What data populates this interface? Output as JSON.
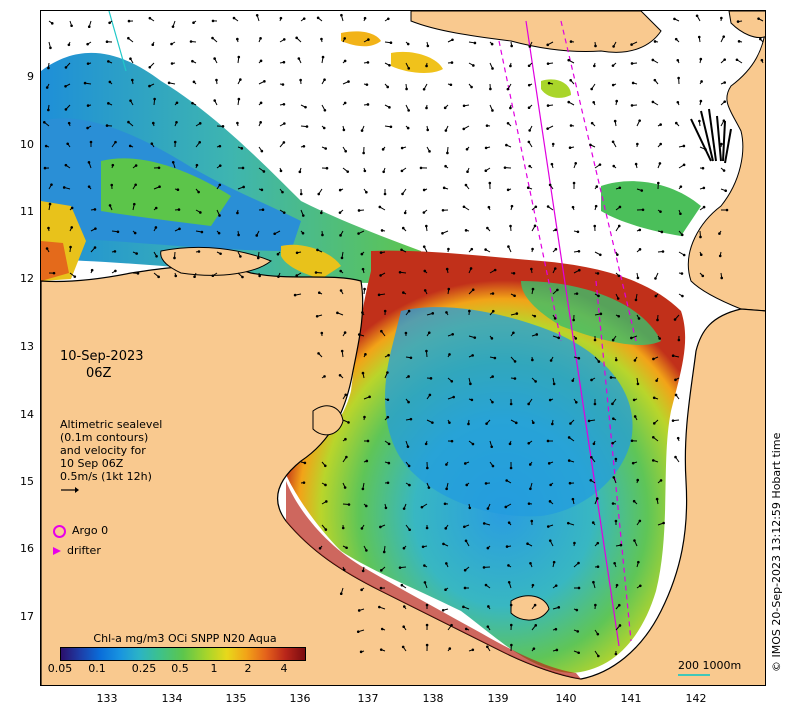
{
  "map": {
    "axes": {
      "lat_ticks": [
        "9",
        "10",
        "11",
        "12",
        "13",
        "14",
        "15",
        "16",
        "17"
      ],
      "lon_ticks": [
        "133",
        "134",
        "135",
        "136",
        "137",
        "138",
        "139",
        "140",
        "141",
        "142"
      ]
    },
    "overlay": {
      "date_line": "10-Sep-2023",
      "time_line": "06Z",
      "altimetry_lines": [
        "Altimetric sealevel",
        "(0.1m contours)",
        "and velocity for",
        "10 Sep 06Z",
        "0.5m/s (1kt 12h)"
      ],
      "argo_label": "Argo 0",
      "drifter_label": "drifter"
    },
    "colorbar": {
      "title": "Chl-a mg/m3 OCi SNPP N20 Aqua",
      "ticks": [
        "0.05",
        "0.1",
        "0.25",
        "0.5",
        "1",
        "2",
        "4"
      ]
    },
    "scale": {
      "label": "200  1000m",
      "color": "#3fc7b9"
    },
    "credit": "© IMOS 20-Sep-2023 13:12:59 Hobart time",
    "colors": {
      "land": "#f9c98f",
      "coast": "#000000",
      "track": "#e000e0",
      "no_data": "#ffffff"
    }
  }
}
